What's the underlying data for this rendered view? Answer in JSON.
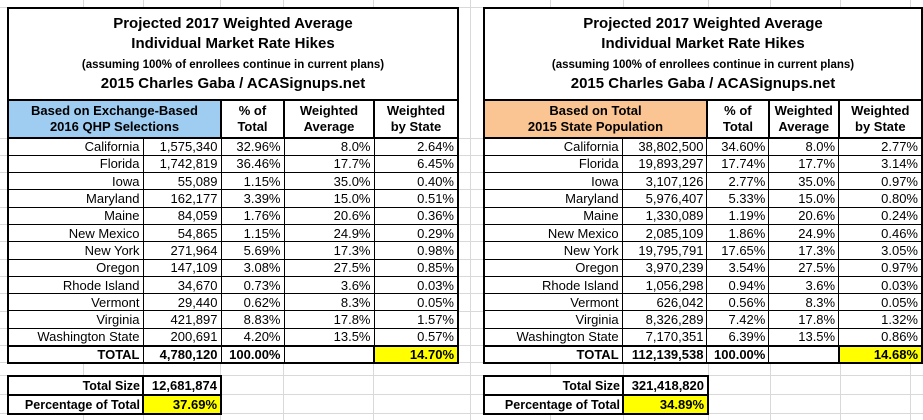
{
  "colors": {
    "left_header_fill": "#9fcdf2",
    "right_header_fill": "#fac592",
    "highlight": "#ffff00"
  },
  "left_table": {
    "title_lines": [
      "Projected 2017 Weighted Average",
      "Individual Market Rate Hikes",
      "(assuming 100% of enrollees continue in current plans)",
      "2015 Charles Gaba / ACASignups.net"
    ],
    "header": {
      "group": [
        "Based on Exchange-Based",
        "2016 QHP Selections"
      ],
      "pct": [
        "% of",
        "Total"
      ],
      "wavg": [
        "Weighted",
        "Average"
      ],
      "wstate": [
        "Weighted",
        "by State"
      ]
    },
    "rows": [
      {
        "state": "California",
        "value": "1,575,340",
        "pct": "32.96%",
        "wavg": "8.0%",
        "wstate": "2.64%"
      },
      {
        "state": "Florida",
        "value": "1,742,819",
        "pct": "36.46%",
        "wavg": "17.7%",
        "wstate": "6.45%"
      },
      {
        "state": "Iowa",
        "value": "55,089",
        "pct": "1.15%",
        "wavg": "35.0%",
        "wstate": "0.40%"
      },
      {
        "state": "Maryland",
        "value": "162,177",
        "pct": "3.39%",
        "wavg": "15.0%",
        "wstate": "0.51%"
      },
      {
        "state": "Maine",
        "value": "84,059",
        "pct": "1.76%",
        "wavg": "20.6%",
        "wstate": "0.36%"
      },
      {
        "state": "New Mexico",
        "value": "54,865",
        "pct": "1.15%",
        "wavg": "24.9%",
        "wstate": "0.29%"
      },
      {
        "state": "New York",
        "value": "271,964",
        "pct": "5.69%",
        "wavg": "17.3%",
        "wstate": "0.98%"
      },
      {
        "state": "Oregon",
        "value": "147,109",
        "pct": "3.08%",
        "wavg": "27.5%",
        "wstate": "0.85%"
      },
      {
        "state": "Rhode Island",
        "value": "34,670",
        "pct": "0.73%",
        "wavg": "3.6%",
        "wstate": "0.03%"
      },
      {
        "state": "Vermont",
        "value": "29,440",
        "pct": "0.62%",
        "wavg": "8.3%",
        "wstate": "0.05%"
      },
      {
        "state": "Virginia",
        "value": "421,897",
        "pct": "8.83%",
        "wavg": "17.8%",
        "wstate": "1.57%"
      },
      {
        "state": "Washington State",
        "value": "200,691",
        "pct": "4.20%",
        "wavg": "13.5%",
        "wstate": "0.57%"
      }
    ],
    "total": {
      "label": "TOTAL",
      "value": "4,780,120",
      "pct": "100.00%",
      "wavg": "",
      "wstate": "14.70%"
    },
    "footer": {
      "size_label": "Total Size",
      "size_value": "12,681,874",
      "pct_label": "Percentage of Total",
      "pct_value": "37.69%"
    }
  },
  "right_table": {
    "title_lines": [
      "Projected 2017 Weighted Average",
      "Individual Market Rate Hikes",
      "(assuming 100% of enrollees continue in current plans)",
      "2015 Charles Gaba / ACASignups.net"
    ],
    "header": {
      "group": [
        "Based on Total",
        "2015 State Population"
      ],
      "pct": [
        "% of",
        "Total"
      ],
      "wavg": [
        "Weighted",
        "Average"
      ],
      "wstate": [
        "Weighted",
        "by State"
      ]
    },
    "rows": [
      {
        "state": "California",
        "value": "38,802,500",
        "pct": "34.60%",
        "wavg": "8.0%",
        "wstate": "2.77%"
      },
      {
        "state": "Florida",
        "value": "19,893,297",
        "pct": "17.74%",
        "wavg": "17.7%",
        "wstate": "3.14%"
      },
      {
        "state": "Iowa",
        "value": "3,107,126",
        "pct": "2.77%",
        "wavg": "35.0%",
        "wstate": "0.97%"
      },
      {
        "state": "Maryland",
        "value": "5,976,407",
        "pct": "5.33%",
        "wavg": "15.0%",
        "wstate": "0.80%"
      },
      {
        "state": "Maine",
        "value": "1,330,089",
        "pct": "1.19%",
        "wavg": "20.6%",
        "wstate": "0.24%"
      },
      {
        "state": "New Mexico",
        "value": "2,085,109",
        "pct": "1.86%",
        "wavg": "24.9%",
        "wstate": "0.46%"
      },
      {
        "state": "New York",
        "value": "19,795,791",
        "pct": "17.65%",
        "wavg": "17.3%",
        "wstate": "3.05%"
      },
      {
        "state": "Oregon",
        "value": "3,970,239",
        "pct": "3.54%",
        "wavg": "27.5%",
        "wstate": "0.97%"
      },
      {
        "state": "Rhode Island",
        "value": "1,056,298",
        "pct": "0.94%",
        "wavg": "3.6%",
        "wstate": "0.03%"
      },
      {
        "state": "Vermont",
        "value": "626,042",
        "pct": "0.56%",
        "wavg": "8.3%",
        "wstate": "0.05%"
      },
      {
        "state": "Virginia",
        "value": "8,326,289",
        "pct": "7.42%",
        "wavg": "17.8%",
        "wstate": "1.32%"
      },
      {
        "state": "Washington State",
        "value": "7,170,351",
        "pct": "6.39%",
        "wavg": "13.5%",
        "wstate": "0.86%"
      }
    ],
    "total": {
      "label": "TOTAL",
      "value": "112,139,538",
      "pct": "100.00%",
      "wavg": "",
      "wstate": "14.68%"
    },
    "footer": {
      "size_label": "Total Size",
      "size_value": "321,418,820",
      "pct_label": "Percentage of Total",
      "pct_value": "34.89%"
    }
  }
}
